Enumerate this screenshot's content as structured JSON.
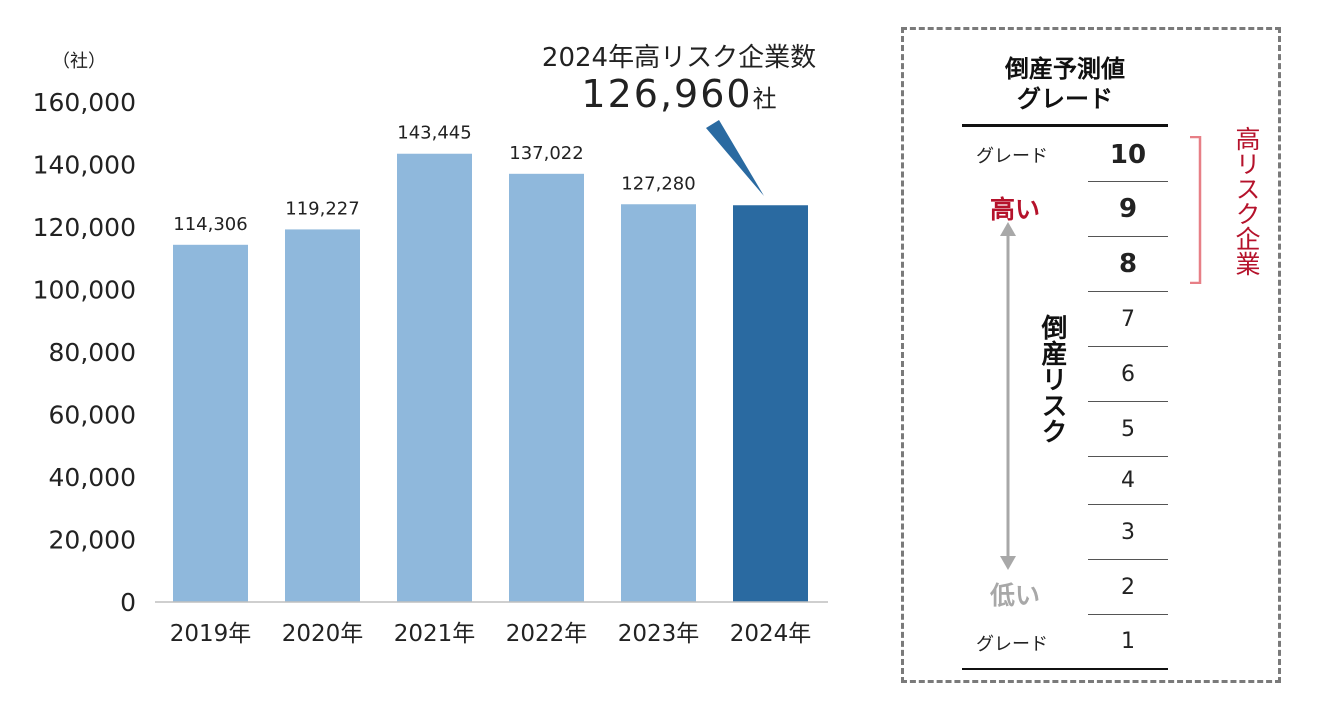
{
  "chart_data": {
    "type": "bar",
    "categories": [
      "2019年",
      "2020年",
      "2021年",
      "2022年",
      "2023年",
      "2024年"
    ],
    "values": [
      114306,
      119227,
      143445,
      137022,
      127280,
      126960
    ],
    "data_labels": [
      "114,306",
      "119,227",
      "143,445",
      "137,022",
      "127,280",
      ""
    ],
    "highlight_index": 5,
    "colors": {
      "bar": "#8fb8dc",
      "highlight": "#2a6aa1",
      "axis": "#bfbfbf"
    },
    "ylim": [
      0,
      160000
    ],
    "y_ticks": [
      "0",
      "20,000",
      "40,000",
      "60,000",
      "80,000",
      "100,000",
      "120,000",
      "140,000",
      "160,000"
    ],
    "y_tick_values": [
      0,
      20000,
      40000,
      60000,
      80000,
      100000,
      120000,
      140000,
      160000
    ],
    "y_unit": "（社）",
    "grid": false,
    "callout": {
      "title": "2024年高リスク企業数",
      "value": "126,960",
      "unit": "社"
    }
  },
  "grade_panel": {
    "title_line1": "倒産予測値",
    "title_line2": "グレード",
    "grades": [
      "10",
      "9",
      "8",
      "7",
      "6",
      "5",
      "4",
      "3",
      "2",
      "1"
    ],
    "top_grade_word": "グレード",
    "bottom_grade_word": "グレード",
    "high_label": "高い",
    "low_label": "低い",
    "risk_label": "倒産リスク",
    "high_risk_label": "高リスク企業",
    "colors": {
      "high": "#b5122b",
      "low": "#a8a8a8",
      "bracket": "#e77f86",
      "arrow": "#a8a8a8"
    }
  }
}
